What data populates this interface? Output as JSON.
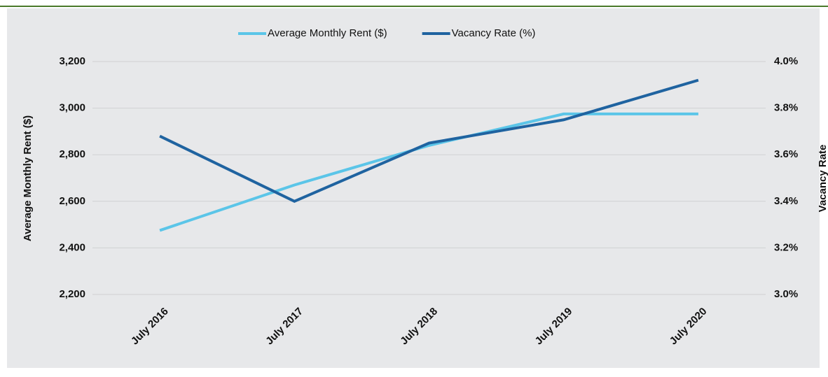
{
  "chart_data": {
    "type": "line",
    "categories": [
      "July 2016",
      "July 2017",
      "July 2018",
      "July 2019",
      "July 2020"
    ],
    "series": [
      {
        "name": "Average Monthly Rent ($)",
        "color": "#5bc5e8",
        "values": [
          2475,
          2670,
          2840,
          2975,
          2975
        ]
      },
      {
        "name": "Vacancy Rate (%)",
        "color": "#1f63a0",
        "axis": "y2",
        "values": [
          3.68,
          3.4,
          3.65,
          3.75,
          3.92
        ]
      }
    ],
    "ylabel": "Average Monthly Rent ($)",
    "y2label": "Vacancy Rate",
    "ylim": [
      2200,
      3200
    ],
    "yticks": [
      {
        "value": 2200,
        "label": "2,200"
      },
      {
        "value": 2400,
        "label": "2,400"
      },
      {
        "value": 2600,
        "label": "2,600"
      },
      {
        "value": 2800,
        "label": "2,800"
      },
      {
        "value": 3000,
        "label": "3,000"
      },
      {
        "value": 3200,
        "label": "3,200"
      }
    ],
    "y2lim": [
      3.0,
      4.0
    ],
    "y2ticks": [
      {
        "value": 3.0,
        "label": "3.0%"
      },
      {
        "value": 3.2,
        "label": "3.2%"
      },
      {
        "value": 3.4,
        "label": "3.4%"
      },
      {
        "value": 3.6,
        "label": "3.6%"
      },
      {
        "value": 3.8,
        "label": "3.8%"
      },
      {
        "value": 4.0,
        "label": "4.0%"
      }
    ],
    "grid": true,
    "legend": "top"
  }
}
